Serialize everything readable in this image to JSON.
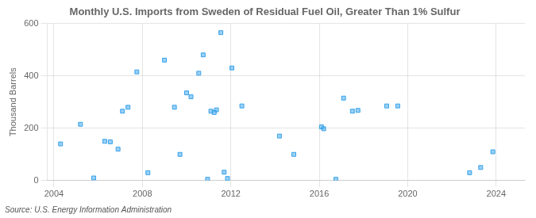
{
  "chart_data": {
    "type": "scatter",
    "title": "Monthly U.S. Imports from Sweden of Residual Fuel Oil, Greater Than 1% Sulfur",
    "ylabel": "Thousand Barrels",
    "annotation": "Source: U.S. Energy Information Administration",
    "x": [
      2004.3,
      2005.2,
      2005.8,
      2006.3,
      2006.55,
      2006.9,
      2007.1,
      2007.35,
      2007.75,
      2008.25,
      2009.0,
      2009.45,
      2009.7,
      2010.0,
      2010.2,
      2010.55,
      2010.75,
      2010.95,
      2011.1,
      2011.25,
      2011.35,
      2011.55,
      2011.7,
      2011.85,
      2012.05,
      2012.5,
      2014.2,
      2014.85,
      2016.1,
      2016.2,
      2016.75,
      2017.1,
      2017.5,
      2017.75,
      2019.05,
      2019.55,
      2022.8,
      2023.3,
      2023.85
    ],
    "values": [
      140,
      215,
      10,
      150,
      148,
      120,
      265,
      280,
      415,
      30,
      460,
      280,
      100,
      335,
      320,
      410,
      480,
      5,
      265,
      260,
      270,
      565,
      32,
      8,
      430,
      285,
      170,
      100,
      205,
      198,
      5,
      315,
      265,
      268,
      285,
      285,
      30,
      50,
      110
    ],
    "xlim": [
      2003.7,
      2025.3
    ],
    "xticks": [
      2004,
      2008,
      2012,
      2016,
      2020,
      2024
    ],
    "ylim": [
      0,
      600
    ],
    "yticks": [
      0,
      200,
      400,
      600
    ],
    "grid": true,
    "marker": "square"
  }
}
